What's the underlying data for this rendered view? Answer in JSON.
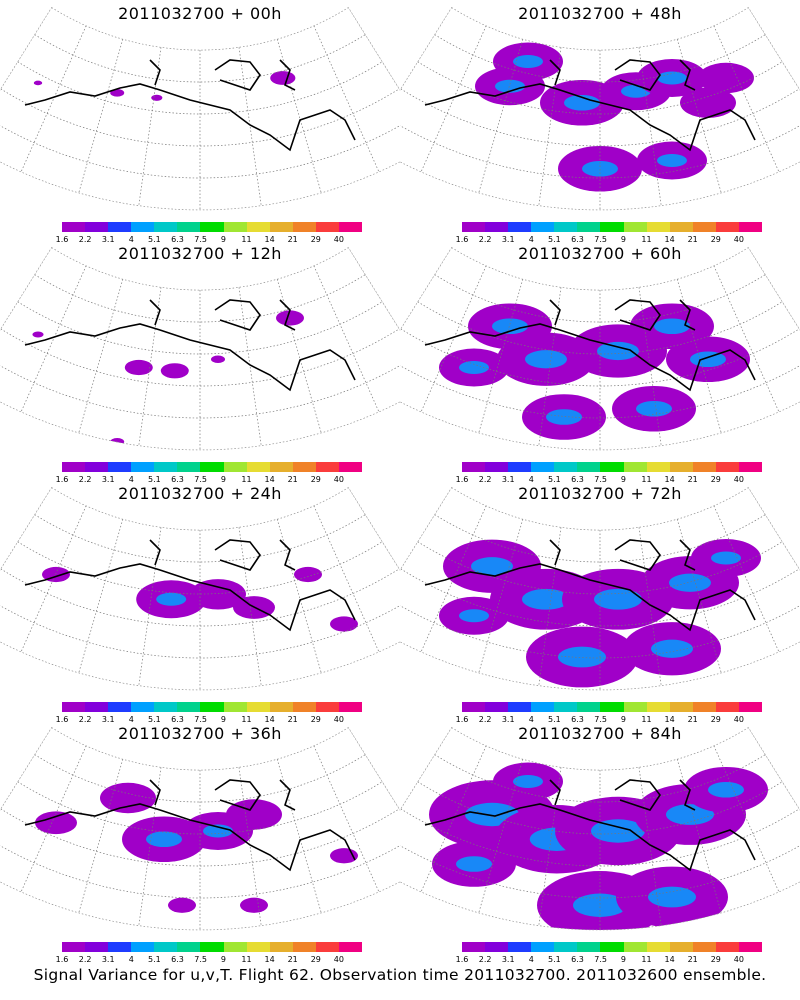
{
  "colors": [
    "#a000c8",
    "#8200dc",
    "#1e3cff",
    "#00a0ff",
    "#00c8c8",
    "#00d28c",
    "#00dc00",
    "#a0e632",
    "#e6dc32",
    "#e6af2d",
    "#f08228",
    "#fa3c3c",
    "#f00082"
  ],
  "colorbar_labels": [
    "1.6",
    "2.2",
    "3.1",
    "4",
    "5.1",
    "6.3",
    "7.5",
    "9",
    "11",
    "14",
    "21",
    "29",
    "40"
  ],
  "panels": [
    {
      "title": "2011032700 + 00h",
      "blobs": [
        [
          0.27,
          0.29,
          0.01
        ],
        [
          0.38,
          0.32,
          0.008
        ],
        [
          0.73,
          0.2,
          0.018
        ],
        [
          0.05,
          0.23,
          0.006
        ]
      ]
    },
    {
      "title": "2011032700 + 48h",
      "blobs": [
        [
          0.25,
          0.25,
          0.05
        ],
        [
          0.45,
          0.35,
          0.06
        ],
        [
          0.6,
          0.28,
          0.05
        ],
        [
          0.7,
          0.2,
          0.05
        ],
        [
          0.8,
          0.35,
          0.04
        ],
        [
          0.5,
          0.75,
          0.06
        ],
        [
          0.7,
          0.7,
          0.05
        ],
        [
          0.85,
          0.2,
          0.04
        ],
        [
          0.3,
          0.1,
          0.05
        ]
      ]
    },
    {
      "title": "2011032700 + 12h",
      "blobs": [
        [
          0.33,
          0.5,
          0.02
        ],
        [
          0.43,
          0.52,
          0.02
        ],
        [
          0.55,
          0.45,
          0.01
        ],
        [
          0.27,
          0.95,
          0.01
        ],
        [
          0.75,
          0.2,
          0.02
        ],
        [
          0.05,
          0.3,
          0.008
        ]
      ]
    },
    {
      "title": "2011032700 + 60h",
      "blobs": [
        [
          0.25,
          0.25,
          0.06
        ],
        [
          0.35,
          0.45,
          0.07
        ],
        [
          0.55,
          0.4,
          0.07
        ],
        [
          0.7,
          0.25,
          0.06
        ],
        [
          0.8,
          0.45,
          0.06
        ],
        [
          0.4,
          0.8,
          0.06
        ],
        [
          0.65,
          0.75,
          0.06
        ],
        [
          0.15,
          0.5,
          0.05
        ]
      ]
    },
    {
      "title": "2011032700 + 24h",
      "blobs": [
        [
          0.42,
          0.45,
          0.05
        ],
        [
          0.55,
          0.42,
          0.04
        ],
        [
          0.65,
          0.5,
          0.03
        ],
        [
          0.8,
          0.3,
          0.02
        ],
        [
          0.1,
          0.3,
          0.02
        ],
        [
          0.9,
          0.6,
          0.02
        ]
      ]
    },
    {
      "title": "2011032700 + 72h",
      "blobs": [
        [
          0.2,
          0.25,
          0.07
        ],
        [
          0.35,
          0.45,
          0.08
        ],
        [
          0.55,
          0.45,
          0.08
        ],
        [
          0.75,
          0.35,
          0.07
        ],
        [
          0.45,
          0.8,
          0.08
        ],
        [
          0.7,
          0.75,
          0.07
        ],
        [
          0.15,
          0.55,
          0.05
        ],
        [
          0.85,
          0.2,
          0.05
        ]
      ]
    },
    {
      "title": "2011032700 + 36h",
      "blobs": [
        [
          0.4,
          0.45,
          0.06
        ],
        [
          0.55,
          0.4,
          0.05
        ],
        [
          0.3,
          0.2,
          0.04
        ],
        [
          0.65,
          0.3,
          0.04
        ],
        [
          0.1,
          0.35,
          0.03
        ],
        [
          0.45,
          0.85,
          0.02
        ],
        [
          0.65,
          0.85,
          0.02
        ],
        [
          0.9,
          0.55,
          0.02
        ]
      ]
    },
    {
      "title": "2011032700 + 84h",
      "blobs": [
        [
          0.2,
          0.3,
          0.09
        ],
        [
          0.38,
          0.45,
          0.09
        ],
        [
          0.55,
          0.4,
          0.09
        ],
        [
          0.75,
          0.3,
          0.08
        ],
        [
          0.5,
          0.85,
          0.09
        ],
        [
          0.7,
          0.8,
          0.08
        ],
        [
          0.15,
          0.6,
          0.06
        ],
        [
          0.85,
          0.15,
          0.06
        ],
        [
          0.3,
          0.1,
          0.05
        ]
      ]
    }
  ],
  "footer": "Signal Variance for u,v,T. Flight 62. Observation time 2011032700. 2011032600 ensemble."
}
